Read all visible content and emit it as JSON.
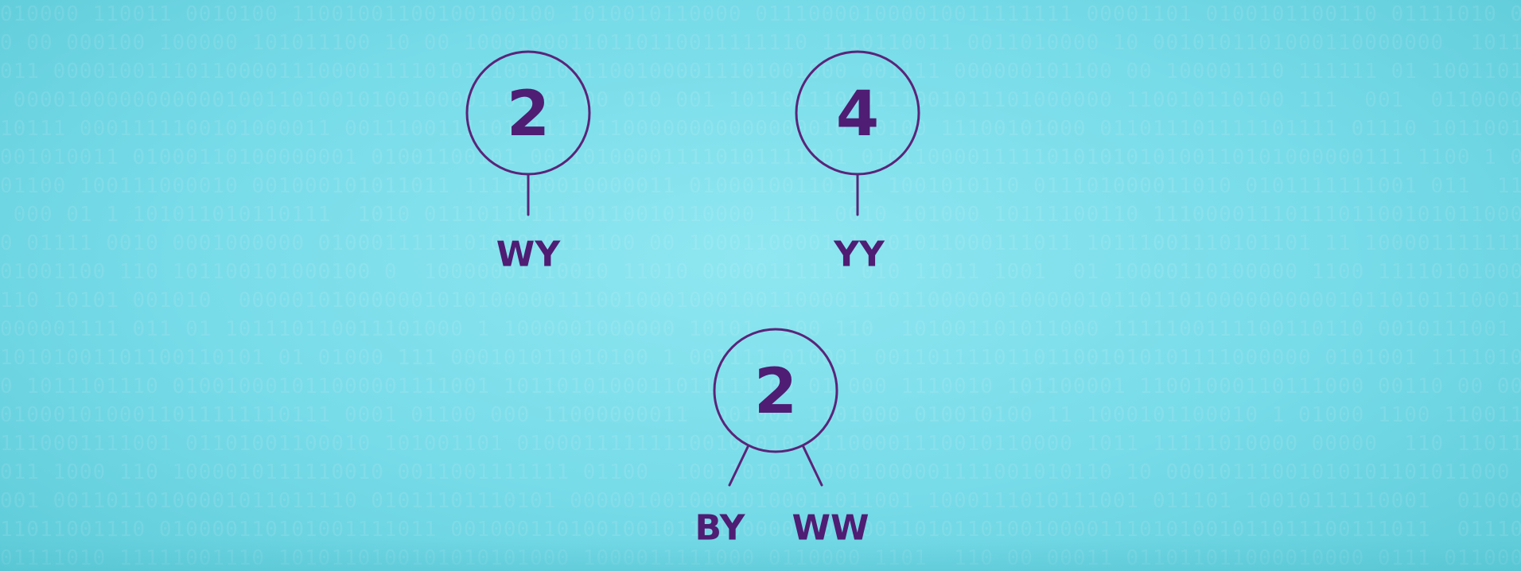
{
  "colors": {
    "background": "#7fe0ec",
    "ink": "#4f1d73"
  },
  "nodes": [
    {
      "count": "2",
      "labels": [
        "WY"
      ]
    },
    {
      "count": "4",
      "labels": [
        "YY"
      ]
    },
    {
      "count": "2",
      "labels": [
        "BY",
        "WW"
      ]
    }
  ]
}
